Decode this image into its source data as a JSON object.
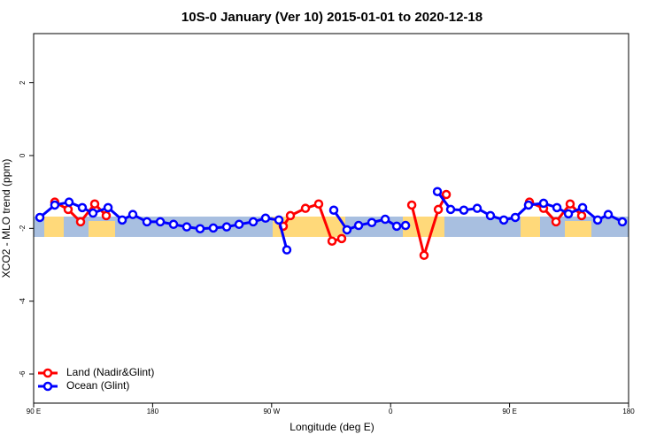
{
  "chart_data": {
    "type": "line",
    "title": "10S-0 January (Ver 10)   2015-01-01 to 2020-12-18",
    "x_label": "Longitude (deg E)",
    "y_label": "XCO2 - MLO trend (ppm)",
    "xlim": [
      90,
      540
    ],
    "xticks": [
      {
        "value": 90,
        "label": "90 E"
      },
      {
        "value": 180,
        "label": "180"
      },
      {
        "value": 270,
        "label": "90 W"
      },
      {
        "value": 360,
        "label": "0"
      },
      {
        "value": 450,
        "label": "90 E"
      },
      {
        "value": 540,
        "label": "180"
      }
    ],
    "ylim": [
      -6.8,
      3.35
    ],
    "yticks": [
      2,
      0,
      -2,
      -4,
      -6
    ],
    "legend": "bottom-left",
    "series": [
      {
        "name": "Land (Nadir&Glint)",
        "color": "#ff0000",
        "x": [
          106,
          116.1,
          125.5,
          136.2,
          144.9,
          null,
          278.8,
          284.2,
          295.6,
          305.6,
          315.7,
          323,
          null,
          376,
          385.3,
          396.1,
          402.1,
          null,
          465,
          475.7,
          485.1,
          495.8,
          504.5
        ],
        "values": [
          -1.28,
          -1.48,
          -1.82,
          -1.33,
          -1.65,
          null,
          -1.94,
          -1.65,
          -1.45,
          -1.33,
          -2.35,
          -2.28,
          null,
          -1.36,
          -2.74,
          -1.48,
          -1.07,
          null,
          -1.28,
          -1.45,
          -1.82,
          -1.33,
          -1.65
        ]
      },
      {
        "name": "Ocean (Glint)",
        "color": "#0000ff",
        "x": [
          94.7,
          106,
          116.8,
          126.8,
          134.9,
          146.3,
          157,
          165,
          175.7,
          185.8,
          195.8,
          205.8,
          215.9,
          225.9,
          236,
          245.4,
          256.1,
          265.4,
          275.5,
          281.5,
          null,
          317,
          327,
          335.8,
          345.8,
          355.9,
          364.6,
          371.3,
          null,
          395.4,
          405.4,
          415.4,
          425.5,
          435.5,
          445.6,
          454.3,
          464.3,
          475.7,
          485.8,
          494.5,
          505.2,
          516.6,
          524.6,
          535.3
        ],
        "values": [
          -1.7,
          -1.36,
          -1.28,
          -1.43,
          -1.58,
          -1.43,
          -1.77,
          -1.62,
          -1.82,
          -1.82,
          -1.89,
          -1.96,
          -2.01,
          -1.99,
          -1.96,
          -1.89,
          -1.82,
          -1.72,
          -1.77,
          -2.59,
          null,
          -1.5,
          -2.04,
          -1.92,
          -1.84,
          -1.75,
          -1.94,
          -1.92,
          null,
          -0.99,
          -1.48,
          -1.5,
          -1.45,
          -1.65,
          -1.77,
          -1.7,
          -1.36,
          -1.31,
          -1.43,
          -1.6,
          -1.43,
          -1.77,
          -1.62,
          -1.82
        ]
      }
    ]
  }
}
